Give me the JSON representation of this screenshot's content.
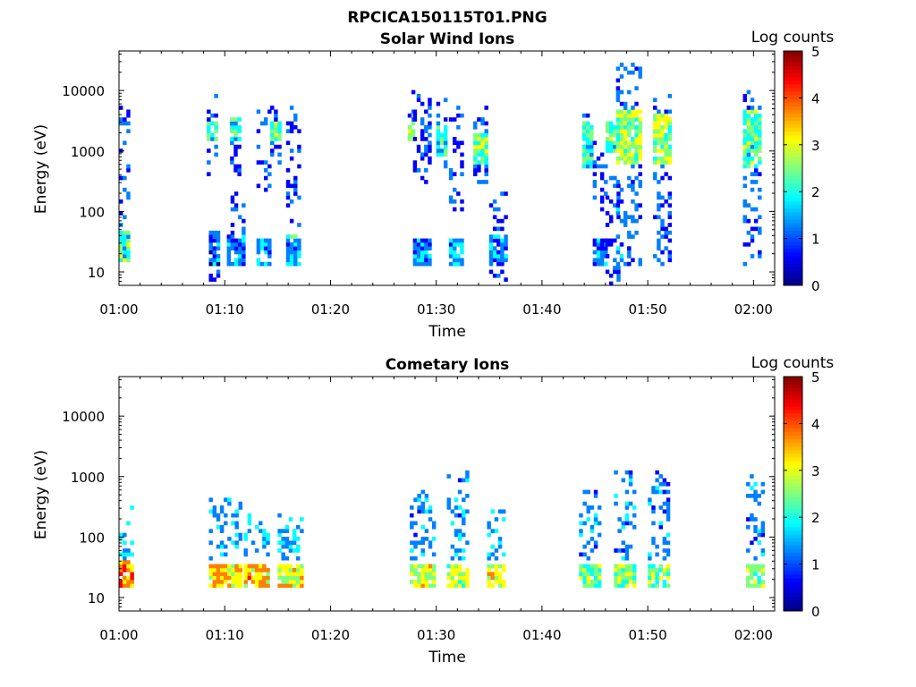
{
  "figure_title": "RPCICA150115T01.PNG",
  "colors": {
    "colormap": [
      "#00007f",
      "#0000ff",
      "#007fff",
      "#00ffff",
      "#7fff7f",
      "#ffff00",
      "#ff7f00",
      "#ff0000",
      "#7f0000"
    ],
    "axes": "#000000",
    "background": "#ffffff"
  },
  "chart_data": [
    {
      "type": "heatmap",
      "title": "Solar Wind Ions",
      "xlabel": "Time",
      "ylabel": "Energy (eV)",
      "colorbar_label": "Log counts",
      "x_ticks": [
        "01:00",
        "01:10",
        "01:20",
        "01:30",
        "01:40",
        "01:50",
        "02:00"
      ],
      "xlim_minutes": [
        0,
        62
      ],
      "y_scale": "log",
      "y_ticks": [
        "10",
        "100",
        "1000",
        "10000"
      ],
      "ylim": [
        6,
        45000
      ],
      "clim": [
        0,
        5
      ],
      "colorbar_ticks": [
        "0",
        "1",
        "2",
        "3",
        "4",
        "5"
      ],
      "blocks": [
        {
          "t": [
            0.0,
            1.0
          ],
          "core": [
            14,
            45
          ],
          "core_level": 2.2,
          "high": [
            60,
            7000
          ],
          "high_level": 0.5
        },
        {
          "t": [
            8.3,
            9.2
          ],
          "core": [
            1500,
            3000
          ],
          "core_level": 2.1,
          "high": [
            300,
            10000
          ],
          "high_level": 0.4
        },
        {
          "t": [
            8.5,
            9.5
          ],
          "core": [
            13,
            45
          ],
          "core_level": 0.9,
          "high": [
            5,
            13
          ],
          "high_level": 0.4
        },
        {
          "t": [
            10.5,
            11.5
          ],
          "core": [
            1500,
            3500
          ],
          "core_level": 2.0,
          "high": [
            400,
            5000
          ],
          "high_level": 0.4
        },
        {
          "t": [
            10.2,
            11.8
          ],
          "core": [
            12,
            40
          ],
          "core_level": 1.3,
          "high": [
            40,
            200
          ],
          "high_level": 0.4
        },
        {
          "t": [
            13.0,
            14.2
          ],
          "core": [
            12,
            35
          ],
          "core_level": 1.5,
          "high": [
            200,
            5000
          ],
          "high_level": 0.4
        },
        {
          "t": [
            14.3,
            15.2
          ],
          "core": [
            1500,
            3000
          ],
          "core_level": 2.3,
          "high": [
            600,
            6000
          ],
          "high_level": 0.5
        },
        {
          "t": [
            15.8,
            17.2
          ],
          "core": [
            12,
            40
          ],
          "core_level": 1.6,
          "high": [
            60,
            6000
          ],
          "high_level": 0.4
        },
        {
          "t": [
            27.3,
            28.0
          ],
          "core": [
            1500,
            3000
          ],
          "core_level": 2.6,
          "high": [
            3000,
            15000
          ],
          "high_level": 0.4
        },
        {
          "t": [
            27.8,
            29.5
          ],
          "core": [
            12,
            35
          ],
          "core_level": 1.4,
          "high": [
            300,
            10000
          ],
          "high_level": 0.4
        },
        {
          "t": [
            30.0,
            31.0
          ],
          "core": [
            800,
            2500
          ],
          "core_level": 2.0,
          "high": [
            500,
            8000
          ],
          "high_level": 0.6
        },
        {
          "t": [
            31.2,
            32.6
          ],
          "core": [
            12,
            35
          ],
          "core_level": 1.4,
          "high": [
            100,
            6000
          ],
          "high_level": 0.4
        },
        {
          "t": [
            33.5,
            34.6
          ],
          "core": [
            600,
            2000
          ],
          "core_level": 2.4,
          "high": [
            300,
            6000
          ],
          "high_level": 0.6
        },
        {
          "t": [
            35.0,
            36.5
          ],
          "core": [
            15,
            40
          ],
          "core_level": 1.3,
          "high": [
            5,
            200
          ],
          "high_level": 0.5
        },
        {
          "t": [
            43.8,
            44.8
          ],
          "core": [
            500,
            3000
          ],
          "core_level": 2.1,
          "high": [
            2000,
            5000
          ],
          "high_level": 0.5
        },
        {
          "t": [
            44.8,
            46.0
          ],
          "core": [
            12,
            35
          ],
          "core_level": 1.2,
          "high": [
            100,
            1500
          ],
          "high_level": 0.4
        },
        {
          "t": [
            46.0,
            47.2
          ],
          "core": [
            1000,
            3000
          ],
          "core_level": 2.2,
          "high": [
            6,
            400
          ],
          "high_level": 0.4
        },
        {
          "t": [
            47.0,
            49.2
          ],
          "core": [
            600,
            5000
          ],
          "core_level": 2.5,
          "high": [
            12,
            30000
          ],
          "high_level": 0.7
        },
        {
          "t": [
            50.5,
            52.0
          ],
          "core": [
            600,
            4000
          ],
          "core_level": 2.6,
          "high": [
            12,
            10000
          ],
          "high_level": 0.6
        },
        {
          "t": [
            59.0,
            60.6
          ],
          "core": [
            500,
            5000
          ],
          "core_level": 2.2,
          "high": [
            12,
            10000
          ],
          "high_level": 0.6
        }
      ]
    },
    {
      "type": "heatmap",
      "title": "Cometary Ions",
      "xlabel": "Time",
      "ylabel": "Energy (eV)",
      "colorbar_label": "Log counts",
      "x_ticks": [
        "01:00",
        "01:10",
        "01:20",
        "01:30",
        "01:40",
        "01:50",
        "02:00"
      ],
      "xlim_minutes": [
        0,
        62
      ],
      "y_scale": "log",
      "y_ticks": [
        "10",
        "100",
        "1000",
        "10000"
      ],
      "ylim": [
        6,
        45000
      ],
      "clim": [
        0,
        5
      ],
      "colorbar_ticks": [
        "0",
        "1",
        "2",
        "3",
        "4",
        "5"
      ],
      "blocks": [
        {
          "t": [
            0.0,
            1.3
          ],
          "core": [
            15,
            40
          ],
          "core_level": 3.8,
          "high": [
            40,
            350
          ],
          "high_level": 1.2
        },
        {
          "t": [
            8.5,
            11.3
          ],
          "core": [
            15,
            35
          ],
          "core_level": 3.3,
          "high": [
            40,
            450
          ],
          "high_level": 0.9
        },
        {
          "t": [
            11.8,
            14.2
          ],
          "core": [
            15,
            35
          ],
          "core_level": 3.4,
          "high": [
            40,
            250
          ],
          "high_level": 1.0
        },
        {
          "t": [
            15.0,
            17.2
          ],
          "core": [
            15,
            35
          ],
          "core_level": 3.1,
          "high": [
            40,
            250
          ],
          "high_level": 1.1
        },
        {
          "t": [
            27.5,
            29.8
          ],
          "core": [
            15,
            35
          ],
          "core_level": 2.9,
          "high": [
            40,
            600
          ],
          "high_level": 0.9
        },
        {
          "t": [
            31.0,
            33.0
          ],
          "core": [
            15,
            35
          ],
          "core_level": 2.8,
          "high": [
            40,
            1200
          ],
          "high_level": 0.9
        },
        {
          "t": [
            34.8,
            36.5
          ],
          "core": [
            15,
            35
          ],
          "core_level": 3.0,
          "high": [
            40,
            300
          ],
          "high_level": 1.0
        },
        {
          "t": [
            43.5,
            45.5
          ],
          "core": [
            15,
            35
          ],
          "core_level": 2.5,
          "high": [
            40,
            600
          ],
          "high_level": 0.8
        },
        {
          "t": [
            46.8,
            48.8
          ],
          "core": [
            15,
            35
          ],
          "core_level": 2.6,
          "high": [
            40,
            1300
          ],
          "high_level": 0.8
        },
        {
          "t": [
            50.0,
            52.0
          ],
          "core": [
            15,
            35
          ],
          "core_level": 2.4,
          "high": [
            40,
            1300
          ],
          "high_level": 0.8
        },
        {
          "t": [
            59.3,
            61.0
          ],
          "core": [
            15,
            35
          ],
          "core_level": 2.5,
          "high": [
            40,
            1300
          ],
          "high_level": 0.8
        }
      ]
    }
  ]
}
